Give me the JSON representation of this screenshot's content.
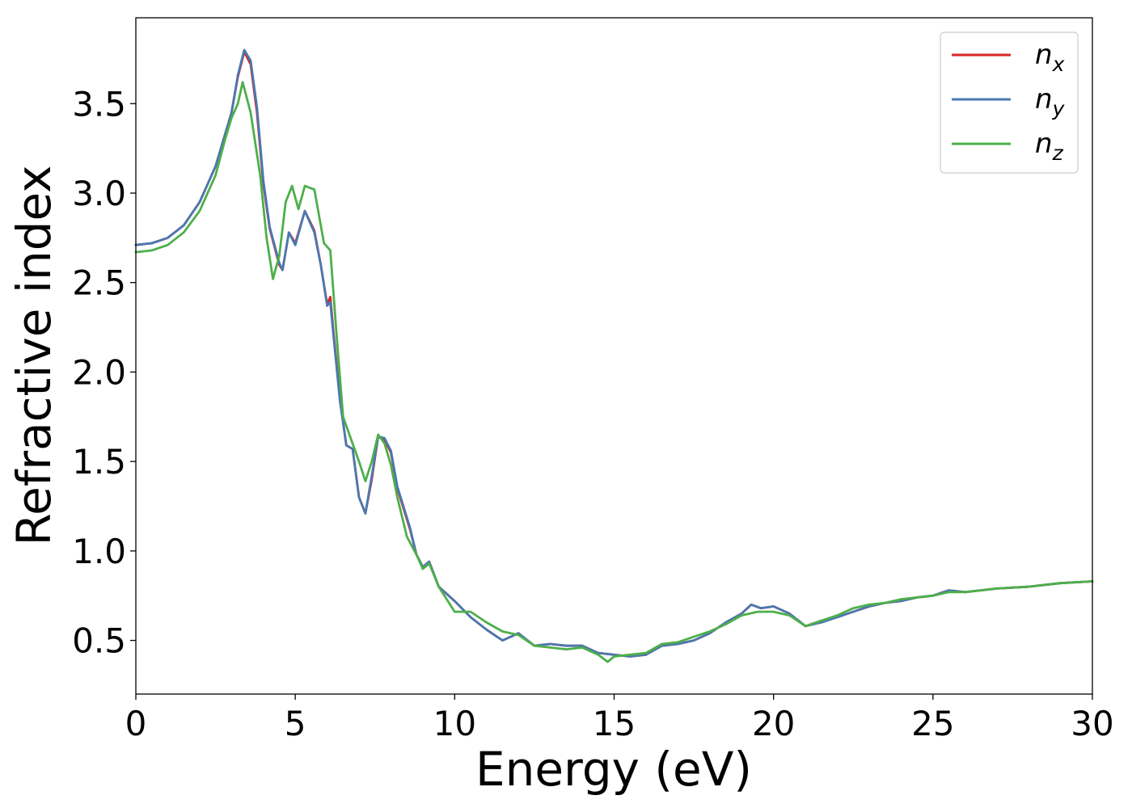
{
  "chart_data": {
    "type": "line",
    "xlabel": "Energy (eV)",
    "ylabel": "Refractive index",
    "xlim": [
      0,
      30
    ],
    "ylim": [
      0.2,
      3.98
    ],
    "xticks": [
      "0",
      "5",
      "10",
      "15",
      "20",
      "25",
      "30"
    ],
    "yticks": [
      "0.5",
      "1.0",
      "1.5",
      "2.0",
      "2.5",
      "3.0",
      "3.5"
    ],
    "grid": false,
    "legend_position": "top-right",
    "series": [
      {
        "name": "n",
        "subscript": "x",
        "color": "#d62728",
        "points": [
          [
            0,
            2.71
          ],
          [
            0.5,
            2.72
          ],
          [
            1,
            2.75
          ],
          [
            1.5,
            2.82
          ],
          [
            2,
            2.95
          ],
          [
            2.5,
            3.15
          ],
          [
            3,
            3.45
          ],
          [
            3.2,
            3.65
          ],
          [
            3.4,
            3.79
          ],
          [
            3.6,
            3.72
          ],
          [
            3.8,
            3.45
          ],
          [
            4.0,
            3.05
          ],
          [
            4.2,
            2.8
          ],
          [
            4.5,
            2.6
          ],
          [
            4.6,
            2.57
          ],
          [
            4.8,
            2.78
          ],
          [
            5.0,
            2.72
          ],
          [
            5.3,
            2.9
          ],
          [
            5.6,
            2.79
          ],
          [
            5.8,
            2.6
          ],
          [
            6.0,
            2.38
          ],
          [
            6.1,
            2.42
          ],
          [
            6.2,
            2.22
          ],
          [
            6.4,
            1.85
          ],
          [
            6.6,
            1.59
          ],
          [
            6.8,
            1.57
          ],
          [
            7.0,
            1.3
          ],
          [
            7.2,
            1.21
          ],
          [
            7.4,
            1.4
          ],
          [
            7.6,
            1.64
          ],
          [
            7.8,
            1.62
          ],
          [
            8.0,
            1.55
          ],
          [
            8.2,
            1.35
          ],
          [
            8.6,
            1.12
          ],
          [
            8.8,
            0.98
          ],
          [
            9.0,
            0.91
          ],
          [
            9.2,
            0.94
          ],
          [
            9.5,
            0.8
          ],
          [
            10,
            0.72
          ],
          [
            10.5,
            0.63
          ],
          [
            11,
            0.56
          ],
          [
            11.5,
            0.5
          ],
          [
            12,
            0.54
          ],
          [
            12.5,
            0.47
          ],
          [
            13,
            0.48
          ],
          [
            13.5,
            0.47
          ],
          [
            14,
            0.47
          ],
          [
            14.5,
            0.43
          ],
          [
            15,
            0.42
          ],
          [
            15.5,
            0.41
          ],
          [
            16,
            0.42
          ],
          [
            16.5,
            0.47
          ],
          [
            17,
            0.48
          ],
          [
            17.5,
            0.5
          ],
          [
            18,
            0.54
          ],
          [
            18.5,
            0.6
          ],
          [
            19,
            0.65
          ],
          [
            19.3,
            0.7
          ],
          [
            19.6,
            0.68
          ],
          [
            20,
            0.69
          ],
          [
            20.5,
            0.65
          ],
          [
            21,
            0.58
          ],
          [
            21.5,
            0.61
          ],
          [
            22,
            0.63
          ],
          [
            22.5,
            0.66
          ],
          [
            23,
            0.69
          ],
          [
            23.5,
            0.71
          ],
          [
            24,
            0.72
          ],
          [
            24.5,
            0.74
          ],
          [
            25,
            0.75
          ],
          [
            25.5,
            0.78
          ],
          [
            26,
            0.77
          ],
          [
            26.5,
            0.78
          ],
          [
            27,
            0.79
          ],
          [
            28,
            0.8
          ],
          [
            29,
            0.82
          ],
          [
            30,
            0.83
          ]
        ]
      },
      {
        "name": "n",
        "subscript": "y",
        "color": "#4a78b0",
        "points": [
          [
            0,
            2.71
          ],
          [
            0.5,
            2.72
          ],
          [
            1,
            2.75
          ],
          [
            1.5,
            2.82
          ],
          [
            2,
            2.95
          ],
          [
            2.5,
            3.15
          ],
          [
            3,
            3.45
          ],
          [
            3.2,
            3.66
          ],
          [
            3.4,
            3.8
          ],
          [
            3.6,
            3.74
          ],
          [
            3.8,
            3.48
          ],
          [
            4.0,
            3.07
          ],
          [
            4.2,
            2.81
          ],
          [
            4.5,
            2.61
          ],
          [
            4.6,
            2.57
          ],
          [
            4.8,
            2.78
          ],
          [
            5.0,
            2.71
          ],
          [
            5.3,
            2.9
          ],
          [
            5.6,
            2.78
          ],
          [
            5.8,
            2.6
          ],
          [
            6.0,
            2.37
          ],
          [
            6.1,
            2.39
          ],
          [
            6.2,
            2.2
          ],
          [
            6.4,
            1.84
          ],
          [
            6.6,
            1.59
          ],
          [
            6.8,
            1.57
          ],
          [
            7.0,
            1.3
          ],
          [
            7.2,
            1.21
          ],
          [
            7.4,
            1.42
          ],
          [
            7.6,
            1.64
          ],
          [
            7.8,
            1.63
          ],
          [
            8.0,
            1.56
          ],
          [
            8.2,
            1.36
          ],
          [
            8.6,
            1.13
          ],
          [
            8.8,
            0.98
          ],
          [
            9.0,
            0.91
          ],
          [
            9.2,
            0.94
          ],
          [
            9.5,
            0.8
          ],
          [
            10,
            0.72
          ],
          [
            10.5,
            0.63
          ],
          [
            11,
            0.56
          ],
          [
            11.5,
            0.5
          ],
          [
            12,
            0.54
          ],
          [
            12.5,
            0.47
          ],
          [
            13,
            0.48
          ],
          [
            13.5,
            0.47
          ],
          [
            14,
            0.47
          ],
          [
            14.5,
            0.43
          ],
          [
            15,
            0.42
          ],
          [
            15.5,
            0.41
          ],
          [
            16,
            0.42
          ],
          [
            16.5,
            0.47
          ],
          [
            17,
            0.48
          ],
          [
            17.5,
            0.5
          ],
          [
            18,
            0.54
          ],
          [
            18.5,
            0.6
          ],
          [
            19,
            0.65
          ],
          [
            19.3,
            0.7
          ],
          [
            19.6,
            0.68
          ],
          [
            20,
            0.69
          ],
          [
            20.5,
            0.65
          ],
          [
            21,
            0.58
          ],
          [
            21.5,
            0.6
          ],
          [
            22,
            0.63
          ],
          [
            22.5,
            0.66
          ],
          [
            23,
            0.69
          ],
          [
            23.5,
            0.71
          ],
          [
            24,
            0.72
          ],
          [
            24.5,
            0.74
          ],
          [
            25,
            0.75
          ],
          [
            25.5,
            0.78
          ],
          [
            26,
            0.77
          ],
          [
            26.5,
            0.78
          ],
          [
            27,
            0.79
          ],
          [
            28,
            0.8
          ],
          [
            29,
            0.82
          ],
          [
            30,
            0.83
          ]
        ]
      },
      {
        "name": "n",
        "subscript": "z",
        "color": "#4daf4a",
        "points": [
          [
            0,
            2.67
          ],
          [
            0.5,
            2.68
          ],
          [
            1,
            2.71
          ],
          [
            1.5,
            2.78
          ],
          [
            2,
            2.9
          ],
          [
            2.5,
            3.1
          ],
          [
            2.8,
            3.3
          ],
          [
            3.0,
            3.42
          ],
          [
            3.2,
            3.5
          ],
          [
            3.35,
            3.62
          ],
          [
            3.6,
            3.45
          ],
          [
            3.9,
            3.1
          ],
          [
            4.1,
            2.75
          ],
          [
            4.3,
            2.52
          ],
          [
            4.5,
            2.65
          ],
          [
            4.7,
            2.95
          ],
          [
            4.9,
            3.04
          ],
          [
            5.1,
            2.91
          ],
          [
            5.3,
            3.04
          ],
          [
            5.6,
            3.02
          ],
          [
            5.9,
            2.72
          ],
          [
            6.1,
            2.68
          ],
          [
            6.3,
            2.2
          ],
          [
            6.5,
            1.75
          ],
          [
            6.8,
            1.6
          ],
          [
            7.0,
            1.5
          ],
          [
            7.2,
            1.39
          ],
          [
            7.4,
            1.5
          ],
          [
            7.6,
            1.65
          ],
          [
            7.8,
            1.6
          ],
          [
            8.0,
            1.48
          ],
          [
            8.2,
            1.3
          ],
          [
            8.5,
            1.08
          ],
          [
            8.8,
            0.98
          ],
          [
            9.0,
            0.9
          ],
          [
            9.2,
            0.93
          ],
          [
            9.5,
            0.8
          ],
          [
            10,
            0.66
          ],
          [
            10.5,
            0.66
          ],
          [
            11,
            0.6
          ],
          [
            11.5,
            0.55
          ],
          [
            12,
            0.53
          ],
          [
            12.5,
            0.47
          ],
          [
            13,
            0.46
          ],
          [
            13.5,
            0.45
          ],
          [
            14,
            0.46
          ],
          [
            14.5,
            0.42
          ],
          [
            14.8,
            0.38
          ],
          [
            15,
            0.41
          ],
          [
            15.5,
            0.42
          ],
          [
            16,
            0.43
          ],
          [
            16.5,
            0.48
          ],
          [
            17,
            0.49
          ],
          [
            17.5,
            0.52
          ],
          [
            18,
            0.55
          ],
          [
            18.5,
            0.59
          ],
          [
            19,
            0.64
          ],
          [
            19.5,
            0.66
          ],
          [
            20,
            0.66
          ],
          [
            20.5,
            0.64
          ],
          [
            21,
            0.58
          ],
          [
            21.5,
            0.61
          ],
          [
            22,
            0.64
          ],
          [
            22.5,
            0.68
          ],
          [
            23,
            0.7
          ],
          [
            23.5,
            0.71
          ],
          [
            24,
            0.73
          ],
          [
            24.5,
            0.74
          ],
          [
            25,
            0.75
          ],
          [
            25.5,
            0.77
          ],
          [
            26,
            0.77
          ],
          [
            26.5,
            0.78
          ],
          [
            27,
            0.79
          ],
          [
            28,
            0.8
          ],
          [
            29,
            0.82
          ],
          [
            30,
            0.83
          ]
        ]
      }
    ]
  }
}
